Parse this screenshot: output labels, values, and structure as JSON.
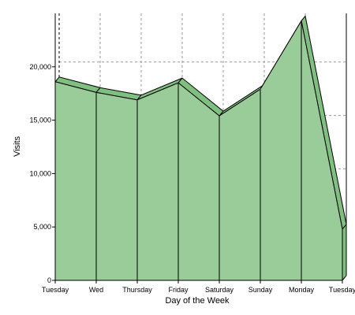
{
  "chart_data": {
    "type": "area",
    "categories": [
      "Tuesday",
      "Wed",
      "Thursday",
      "Friday",
      "Saturday",
      "Sunday",
      "Monday",
      "Tuesday"
    ],
    "series": [
      {
        "values": [
          18600,
          17600,
          16900,
          18500,
          15400,
          17900,
          24300,
          4800
        ]
      }
    ],
    "xlabel": "Day of the Week",
    "ylabel": "Visits",
    "ylim": [
      0,
      25000
    ],
    "yticks": [
      0,
      5000,
      10000,
      15000,
      20000
    ],
    "ytick_labels": [
      "0",
      "5,000",
      "10,000",
      "15,000",
      "20,000"
    ],
    "grid": true,
    "style": "3d",
    "colors": {
      "fill": "#99cc99",
      "top_face": "#7fbf7f",
      "edge": "#000000",
      "grid": "#999999"
    }
  }
}
